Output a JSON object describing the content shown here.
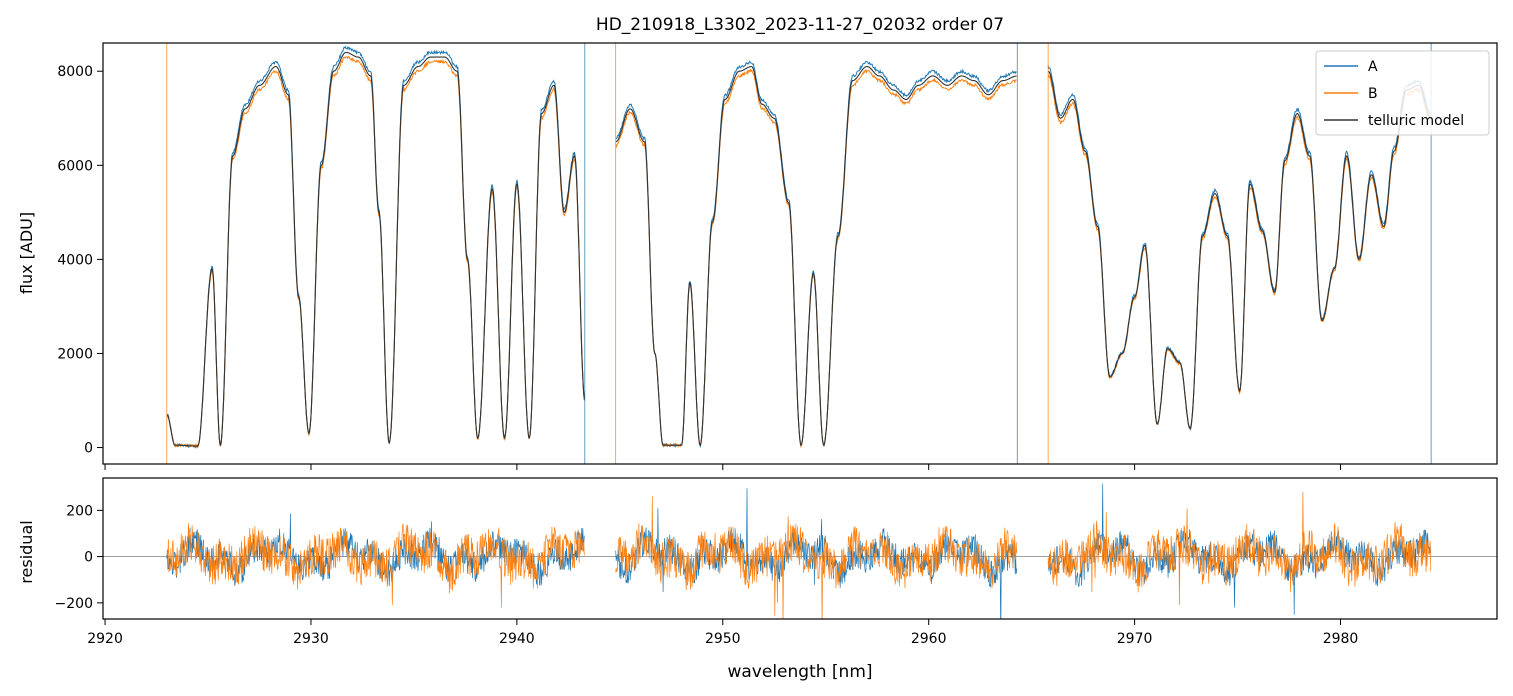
{
  "figure": {
    "title": "HD_210918_L3302_2023-11-27_02032  order 07"
  },
  "colors": {
    "series_a": "#1f77b4",
    "series_b": "#ff7f0e",
    "model": "#333333",
    "zero_line": "#808080",
    "axes": "#000000"
  },
  "chart_data": [
    {
      "type": "line",
      "panel": "top",
      "title": "HD_210918_L3302_2023-11-27_02032  order 07",
      "xlabel": "",
      "ylabel": "flux [ADU]",
      "xlim": [
        2919.9,
        2987.6
      ],
      "ylim": [
        -350,
        8600
      ],
      "xticks": [
        2920,
        2930,
        2940,
        2950,
        2960,
        2970,
        2980
      ],
      "xticklabels_shown": false,
      "yticks": [
        0,
        2000,
        4000,
        6000,
        8000
      ],
      "yticklabels": [
        "0",
        "2000",
        "4000",
        "6000",
        "8000"
      ],
      "grid": false,
      "legend": {
        "placement": "top-right",
        "entries": [
          "A",
          "B",
          "telluric model"
        ]
      },
      "segments": [
        [
          2923.0,
          2943.3
        ],
        [
          2944.8,
          2964.3
        ],
        [
          2965.8,
          2984.4
        ]
      ],
      "envelope_points": [
        [
          2923.0,
          700
        ],
        [
          2923.4,
          50
        ],
        [
          2924.5,
          30
        ],
        [
          2925.2,
          3800
        ],
        [
          2925.6,
          50
        ],
        [
          2926.2,
          6200
        ],
        [
          2926.8,
          7200
        ],
        [
          2927.5,
          7700
        ],
        [
          2928.3,
          8100
        ],
        [
          2928.9,
          7500
        ],
        [
          2929.4,
          3200
        ],
        [
          2929.9,
          300
        ],
        [
          2930.5,
          6000
        ],
        [
          2931.1,
          8000
        ],
        [
          2931.7,
          8400
        ],
        [
          2932.3,
          8300
        ],
        [
          2932.9,
          7900
        ],
        [
          2933.3,
          5000
        ],
        [
          2933.8,
          100
        ],
        [
          2934.5,
          7700
        ],
        [
          2935.2,
          8100
        ],
        [
          2935.8,
          8300
        ],
        [
          2936.5,
          8300
        ],
        [
          2937.1,
          8000
        ],
        [
          2937.6,
          4000
        ],
        [
          2938.1,
          200
        ],
        [
          2938.8,
          5500
        ],
        [
          2939.4,
          200
        ],
        [
          2940.0,
          5600
        ],
        [
          2940.6,
          200
        ],
        [
          2941.2,
          7100
        ],
        [
          2941.8,
          7700
        ],
        [
          2942.3,
          5000
        ],
        [
          2942.8,
          6200
        ],
        [
          2943.3,
          1000
        ],
        [
          2944.8,
          6500
        ],
        [
          2945.5,
          7200
        ],
        [
          2946.2,
          6500
        ],
        [
          2946.7,
          2000
        ],
        [
          2947.1,
          50
        ],
        [
          2948.0,
          50
        ],
        [
          2948.4,
          3500
        ],
        [
          2948.9,
          50
        ],
        [
          2949.5,
          4800
        ],
        [
          2950.1,
          7400
        ],
        [
          2950.8,
          8000
        ],
        [
          2951.4,
          8100
        ],
        [
          2951.9,
          7300
        ],
        [
          2952.5,
          7000
        ],
        [
          2953.2,
          5200
        ],
        [
          2953.8,
          50
        ],
        [
          2954.4,
          3700
        ],
        [
          2954.9,
          50
        ],
        [
          2955.6,
          4500
        ],
        [
          2956.3,
          7800
        ],
        [
          2957.0,
          8100
        ],
        [
          2957.6,
          7900
        ],
        [
          2958.3,
          7600
        ],
        [
          2958.9,
          7400
        ],
        [
          2959.5,
          7700
        ],
        [
          2960.2,
          7900
        ],
        [
          2960.9,
          7700
        ],
        [
          2961.6,
          7900
        ],
        [
          2962.2,
          7800
        ],
        [
          2962.9,
          7500
        ],
        [
          2963.6,
          7800
        ],
        [
          2964.3,
          7900
        ],
        [
          2965.8,
          8000
        ],
        [
          2966.4,
          7000
        ],
        [
          2967.0,
          7400
        ],
        [
          2967.6,
          6300
        ],
        [
          2968.2,
          4700
        ],
        [
          2968.8,
          1500
        ],
        [
          2969.4,
          2000
        ],
        [
          2970.0,
          3200
        ],
        [
          2970.5,
          4300
        ],
        [
          2971.1,
          500
        ],
        [
          2971.6,
          2100
        ],
        [
          2972.2,
          1800
        ],
        [
          2972.7,
          400
        ],
        [
          2973.3,
          4500
        ],
        [
          2973.9,
          5400
        ],
        [
          2974.5,
          4500
        ],
        [
          2975.1,
          1200
        ],
        [
          2975.6,
          5600
        ],
        [
          2976.2,
          4600
        ],
        [
          2976.8,
          3300
        ],
        [
          2977.3,
          6100
        ],
        [
          2977.9,
          7100
        ],
        [
          2978.5,
          6200
        ],
        [
          2979.1,
          2700
        ],
        [
          2979.7,
          3800
        ],
        [
          2980.3,
          6200
        ],
        [
          2980.9,
          4000
        ],
        [
          2981.5,
          5800
        ],
        [
          2982.1,
          4700
        ],
        [
          2982.6,
          6300
        ],
        [
          2983.2,
          7600
        ],
        [
          2983.8,
          7700
        ],
        [
          2984.4,
          7000
        ]
      ]
    },
    {
      "type": "line",
      "panel": "bottom",
      "xlabel": "wavelength [nm]",
      "ylabel": "residual",
      "xlim": [
        2919.9,
        2987.6
      ],
      "ylim": [
        -270,
        340
      ],
      "xticks": [
        2920,
        2930,
        2940,
        2950,
        2960,
        2970,
        2980
      ],
      "xticklabels": [
        "2920",
        "2930",
        "2940",
        "2950",
        "2960",
        "2970",
        "2980"
      ],
      "yticks": [
        -200,
        0,
        200
      ],
      "yticklabels": [
        "−200",
        "0",
        "200"
      ],
      "grid": false,
      "reference_line": 0,
      "series": [
        {
          "name": "A",
          "typical_range": [
            -150,
            150
          ]
        },
        {
          "name": "B",
          "typical_range": [
            -200,
            200
          ]
        }
      ]
    }
  ]
}
